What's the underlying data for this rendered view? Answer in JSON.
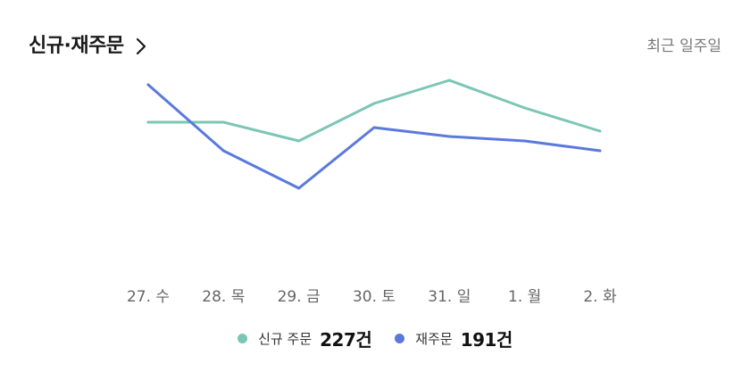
{
  "header": {
    "title": "신규·재주문",
    "period_label": "최근 일주일"
  },
  "colors": {
    "new_orders": "#7cc6b4",
    "reorders": "#5b79dc"
  },
  "chart_data": {
    "type": "line",
    "categories": [
      "27. 수",
      "28. 목",
      "29. 금",
      "30. 토",
      "31. 일",
      "1. 월",
      "2. 화"
    ],
    "series": [
      {
        "name": "신규 주문",
        "values": [
          137,
          137,
          158,
          116,
          90,
          121,
          147
        ]
      },
      {
        "name": "재주문",
        "values": [
          95,
          169,
          211,
          143,
          153,
          158,
          169
        ]
      }
    ],
    "grid": false
  },
  "legend": {
    "items": [
      {
        "name": "신규 주문",
        "value": "227건"
      },
      {
        "name": "재주문",
        "value": "191건"
      }
    ]
  }
}
